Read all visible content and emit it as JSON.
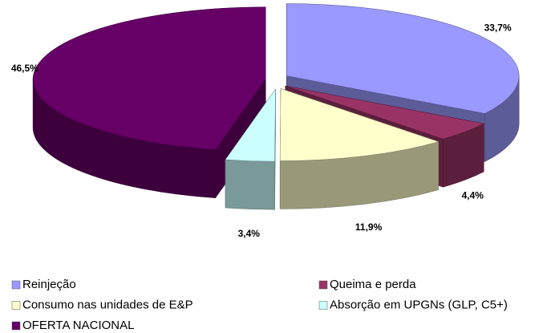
{
  "chart_data": {
    "type": "pie3d",
    "categories": [
      "Reinjeção",
      "Queima e perda",
      "Consumo nas unidades de E&P",
      "Absorção em UPGNs (GLP, C5+)",
      "OFERTA NACIONAL"
    ],
    "values": [
      33.7,
      4.4,
      11.9,
      3.4,
      46.5
    ],
    "value_labels": [
      "33,7%",
      "4,4%",
      "11,9%",
      "3,4%",
      "46,5%"
    ],
    "colors": [
      "#9999ff",
      "#993366",
      "#ffffcc",
      "#ccffff",
      "#660066"
    ],
    "legend": "bottom"
  }
}
